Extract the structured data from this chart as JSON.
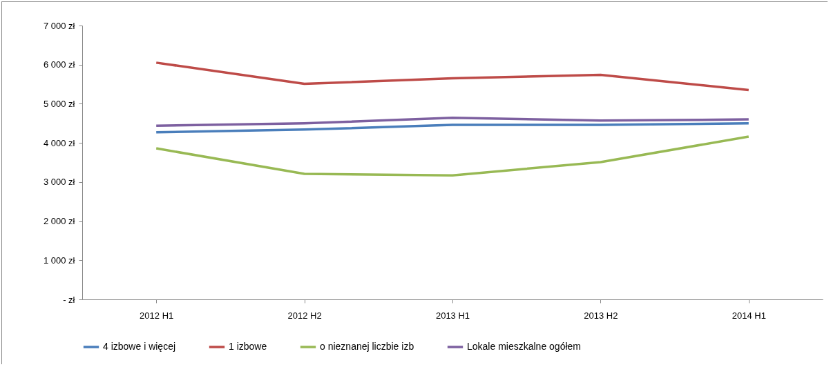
{
  "chart_data": {
    "type": "line",
    "categories": [
      "2012 H1",
      "2012 H2",
      "2013 H1",
      "2013 H2",
      "2014 H1"
    ],
    "series": [
      {
        "name": "4 izbowe i więcej",
        "color": "#4a7ebb",
        "values": [
          4270,
          4340,
          4460,
          4460,
          4500
        ]
      },
      {
        "name": "1 izbowe",
        "color": "#be4b48",
        "values": [
          6050,
          5510,
          5650,
          5740,
          5350
        ]
      },
      {
        "name": "o nieznanej liczbie izb",
        "color": "#98b954",
        "values": [
          3860,
          3210,
          3170,
          3510,
          4160
        ]
      },
      {
        "name": "Lokale mieszkalne ogółem",
        "color": "#7d60a0",
        "values": [
          4440,
          4500,
          4640,
          4570,
          4600
        ]
      }
    ],
    "ylim": [
      0,
      7000
    ],
    "yticks": [
      {
        "value": 0,
        "label": "-   zł"
      },
      {
        "value": 1000,
        "label": "1 000 zł"
      },
      {
        "value": 2000,
        "label": "2 000 zł"
      },
      {
        "value": 3000,
        "label": "3 000 zł"
      },
      {
        "value": 4000,
        "label": "4 000 zł"
      },
      {
        "value": 5000,
        "label": "5 000 zł"
      },
      {
        "value": 6000,
        "label": "6 000 zł"
      },
      {
        "value": 7000,
        "label": "7 000 zł"
      }
    ],
    "grid": false,
    "legend": "bottom",
    "marker": "none",
    "line_style": "solid"
  }
}
